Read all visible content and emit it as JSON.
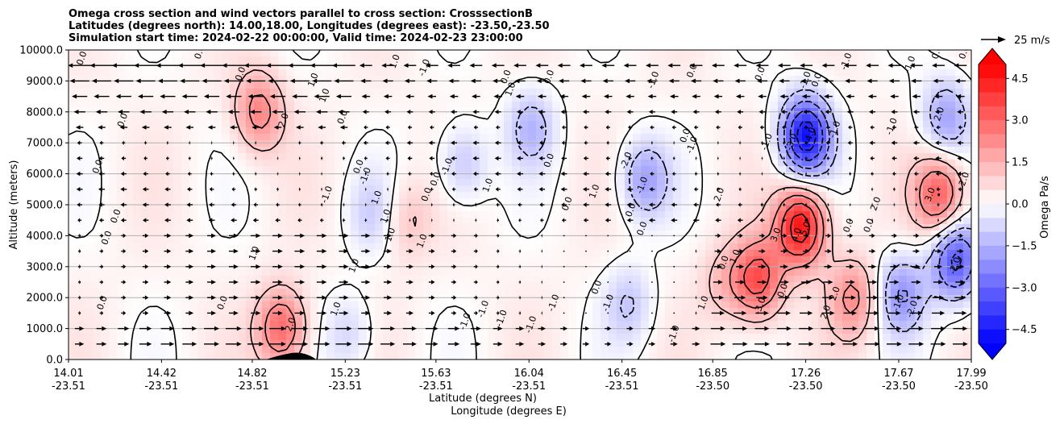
{
  "chart_data": {
    "type": "contour",
    "title_lines": [
      "Omega cross section and wind vectors parallel to cross section: CrosssectionB",
      "Latitudes (degrees north): 14.00,18.00, Longitudes (degrees east): -23.50,-23.50",
      "Simulation start time: 2024-02-22 00:00:00, Valid time: 2024-02-23 23:00:00"
    ],
    "xlabel_lat": "Latitude (degrees N)",
    "xlabel_lon": "Longitude (degrees E)",
    "ylabel": "Altitude (meters)",
    "ylim": [
      0,
      10000
    ],
    "y_ticks": [
      "0.0",
      "1000.0",
      "2000.0",
      "3000.0",
      "4000.0",
      "5000.0",
      "6000.0",
      "7000.0",
      "8000.0",
      "9000.0",
      "10000.0"
    ],
    "x_ticks": [
      {
        "lat": "14.01",
        "lon": "-23.51"
      },
      {
        "lat": "14.42",
        "lon": "-23.51"
      },
      {
        "lat": "14.82",
        "lon": "-23.51"
      },
      {
        "lat": "15.23",
        "lon": "-23.51"
      },
      {
        "lat": "15.63",
        "lon": "-23.51"
      },
      {
        "lat": "16.04",
        "lon": "-23.51"
      },
      {
        "lat": "16.45",
        "lon": "-23.51"
      },
      {
        "lat": "16.85",
        "lon": "-23.50"
      },
      {
        "lat": "17.26",
        "lon": "-23.50"
      },
      {
        "lat": "17.67",
        "lon": "-23.50"
      },
      {
        "lat": "17.99",
        "lon": "-23.50"
      }
    ],
    "colorbar": {
      "label": "Omega Pa/s",
      "ticks": [
        "4.5",
        "3.0",
        "1.5",
        "0.0",
        "−1.5",
        "−3.0",
        "−4.5"
      ],
      "range": [
        -5,
        5
      ]
    },
    "quiver_key": "25 m/s",
    "omega_features": [
      {
        "lat": 17.24,
        "alt": 4300,
        "omega": 4.5
      },
      {
        "lat": 17.05,
        "alt": 2600,
        "omega": 3.2
      },
      {
        "lat": 17.85,
        "alt": 5300,
        "omega": 3.0
      },
      {
        "lat": 14.95,
        "alt": 1000,
        "omega": 2.8
      },
      {
        "lat": 14.85,
        "alt": 8000,
        "omega": 2.2
      },
      {
        "lat": 17.47,
        "alt": 2000,
        "omega": 2.0
      },
      {
        "lat": 15.5,
        "alt": 4500,
        "omega": 1.0
      },
      {
        "lat": 16.9,
        "alt": 2500,
        "omega": 1.0
      },
      {
        "lat": 17.26,
        "alt": 7200,
        "omega": -4.8
      },
      {
        "lat": 17.92,
        "alt": 3200,
        "omega": -3.5
      },
      {
        "lat": 17.68,
        "alt": 2100,
        "omega": -2.2
      },
      {
        "lat": 16.55,
        "alt": 5800,
        "omega": -2.0
      },
      {
        "lat": 17.88,
        "alt": 7800,
        "omega": -2.0
      },
      {
        "lat": 15.75,
        "alt": 6300,
        "omega": -1.4
      },
      {
        "lat": 16.48,
        "alt": 1800,
        "omega": -1.2
      },
      {
        "lat": 15.35,
        "alt": 4700,
        "omega": -1.0
      },
      {
        "lat": 16.05,
        "alt": 7500,
        "omega": -1.5
      },
      {
        "lat": 15.25,
        "alt": 800,
        "omega": -1.0
      }
    ],
    "contour_labels": [
      {
        "lat": 14.08,
        "alt": 9700,
        "text": "0.0"
      },
      {
        "lat": 14.6,
        "alt": 9900,
        "text": "0.0"
      },
      {
        "lat": 14.78,
        "alt": 9200,
        "text": "0.0"
      },
      {
        "lat": 14.26,
        "alt": 7700,
        "text": "0.0"
      },
      {
        "lat": 14.15,
        "alt": 6200,
        "text": "0.0"
      },
      {
        "lat": 14.23,
        "alt": 4600,
        "text": "0.0"
      },
      {
        "lat": 14.19,
        "alt": 3900,
        "text": "0.0"
      },
      {
        "lat": 14.84,
        "alt": 3400,
        "text": "1.0"
      },
      {
        "lat": 14.17,
        "alt": 1800,
        "text": "0.0"
      },
      {
        "lat": 14.7,
        "alt": 1800,
        "text": "0.0"
      },
      {
        "lat": 14.97,
        "alt": 7700,
        "text": "2.0"
      },
      {
        "lat": 15.1,
        "alt": 9000,
        "text": "1.0"
      },
      {
        "lat": 15.15,
        "alt": 8500,
        "text": "1.0"
      },
      {
        "lat": 15.23,
        "alt": 7800,
        "text": "0.0"
      },
      {
        "lat": 15.16,
        "alt": 5300,
        "text": "-1.0"
      },
      {
        "lat": 15.2,
        "alt": 1600,
        "text": "1.0"
      },
      {
        "lat": 15.0,
        "alt": 1100,
        "text": "2.0"
      },
      {
        "lat": 15.28,
        "alt": 3000,
        "text": "1.0"
      },
      {
        "lat": 15.46,
        "alt": 9600,
        "text": "1.0"
      },
      {
        "lat": 15.59,
        "alt": 9400,
        "text": "-1.0"
      },
      {
        "lat": 15.3,
        "alt": 6200,
        "text": "0.0"
      },
      {
        "lat": 15.33,
        "alt": 5900,
        "text": "-1.0"
      },
      {
        "lat": 15.38,
        "alt": 5200,
        "text": "1.0"
      },
      {
        "lat": 15.42,
        "alt": 4600,
        "text": "1.0"
      },
      {
        "lat": 15.44,
        "alt": 4000,
        "text": "1.0"
      },
      {
        "lat": 15.58,
        "alt": 3800,
        "text": "1.0"
      },
      {
        "lat": 15.6,
        "alt": 5300,
        "text": "0.0"
      },
      {
        "lat": 15.64,
        "alt": 5800,
        "text": "0.0"
      },
      {
        "lat": 15.69,
        "alt": 6200,
        "text": "-1.0"
      },
      {
        "lat": 15.87,
        "alt": 5600,
        "text": "1.0"
      },
      {
        "lat": 15.95,
        "alt": 9100,
        "text": "0.0"
      },
      {
        "lat": 15.97,
        "alt": 8700,
        "text": "1.0"
      },
      {
        "lat": 16.14,
        "alt": 9100,
        "text": "0.0"
      },
      {
        "lat": 16.14,
        "alt": 6400,
        "text": "0.0"
      },
      {
        "lat": 16.22,
        "alt": 5000,
        "text": "0.0"
      },
      {
        "lat": 16.34,
        "alt": 5400,
        "text": "1.0"
      },
      {
        "lat": 16.48,
        "alt": 6400,
        "text": "-2.0"
      },
      {
        "lat": 16.55,
        "alt": 5600,
        "text": "-1.0"
      },
      {
        "lat": 16.5,
        "alt": 4800,
        "text": "0.0"
      },
      {
        "lat": 16.55,
        "alt": 4200,
        "text": "0.0"
      },
      {
        "lat": 16.35,
        "alt": 2300,
        "text": "0.0"
      },
      {
        "lat": 16.4,
        "alt": 1800,
        "text": "-1.0"
      },
      {
        "lat": 15.85,
        "alt": 1600,
        "text": "-1.0"
      },
      {
        "lat": 15.93,
        "alt": 1300,
        "text": "-1.0"
      },
      {
        "lat": 16.06,
        "alt": 1100,
        "text": "-1.0"
      },
      {
        "lat": 16.16,
        "alt": 1800,
        "text": "-1.0"
      },
      {
        "lat": 15.77,
        "alt": 1200,
        "text": "-1.0"
      },
      {
        "lat": 16.6,
        "alt": 9000,
        "text": "-1.0"
      },
      {
        "lat": 16.74,
        "alt": 7200,
        "text": "0.0"
      },
      {
        "lat": 16.77,
        "alt": 6900,
        "text": "-1.0"
      },
      {
        "lat": 16.77,
        "alt": 9300,
        "text": "0.0"
      },
      {
        "lat": 16.89,
        "alt": 5300,
        "text": "2.0"
      },
      {
        "lat": 16.91,
        "alt": 3100,
        "text": "0.0"
      },
      {
        "lat": 16.96,
        "alt": 3300,
        "text": "1.0"
      },
      {
        "lat": 16.69,
        "alt": 800,
        "text": "-1.0"
      },
      {
        "lat": 16.82,
        "alt": 1800,
        "text": "1.0"
      },
      {
        "lat": 17.07,
        "alt": 9200,
        "text": "0.0"
      },
      {
        "lat": 17.1,
        "alt": 7000,
        "text": "-1.0"
      },
      {
        "lat": 17.14,
        "alt": 4000,
        "text": "3.0"
      },
      {
        "lat": 17.07,
        "alt": 1700,
        "text": "-3.0"
      },
      {
        "lat": 17.23,
        "alt": 4000,
        "text": "4.0"
      },
      {
        "lat": 17.27,
        "alt": 4200,
        "text": "5.0"
      },
      {
        "lat": 17.17,
        "alt": 2200,
        "text": "0.0"
      },
      {
        "lat": 17.21,
        "alt": 7000,
        "text": "-3.0"
      },
      {
        "lat": 17.29,
        "alt": 7200,
        "text": "-4.0"
      },
      {
        "lat": 17.27,
        "alt": 9000,
        "text": "-1.0"
      },
      {
        "lat": 17.32,
        "alt": 9000,
        "text": "0.0"
      },
      {
        "lat": 17.36,
        "alt": 1500,
        "text": "2.0"
      },
      {
        "lat": 17.4,
        "alt": 2100,
        "text": "2.0"
      },
      {
        "lat": 17.4,
        "alt": 7400,
        "text": "-1.0"
      },
      {
        "lat": 17.45,
        "alt": 9600,
        "text": "-1.0"
      },
      {
        "lat": 17.46,
        "alt": 4300,
        "text": "0.0"
      },
      {
        "lat": 17.55,
        "alt": 4300,
        "text": "0.0"
      },
      {
        "lat": 17.58,
        "alt": 5000,
        "text": "2.0"
      },
      {
        "lat": 17.65,
        "alt": 7500,
        "text": "-1.0"
      },
      {
        "lat": 17.73,
        "alt": 9500,
        "text": "-1.0"
      },
      {
        "lat": 17.68,
        "alt": 1800,
        "text": "-1.0"
      },
      {
        "lat": 17.74,
        "alt": 1600,
        "text": "-2.0"
      },
      {
        "lat": 17.82,
        "alt": 5300,
        "text": "3.0"
      },
      {
        "lat": 17.86,
        "alt": 7900,
        "text": "2.0"
      },
      {
        "lat": 17.85,
        "alt": 9900,
        "text": "0.0"
      },
      {
        "lat": 17.97,
        "alt": 5800,
        "text": "2.0"
      },
      {
        "lat": 17.93,
        "alt": 3000,
        "text": "-2.0"
      },
      {
        "lat": 17.97,
        "alt": 9900,
        "text": "0.0"
      }
    ]
  }
}
